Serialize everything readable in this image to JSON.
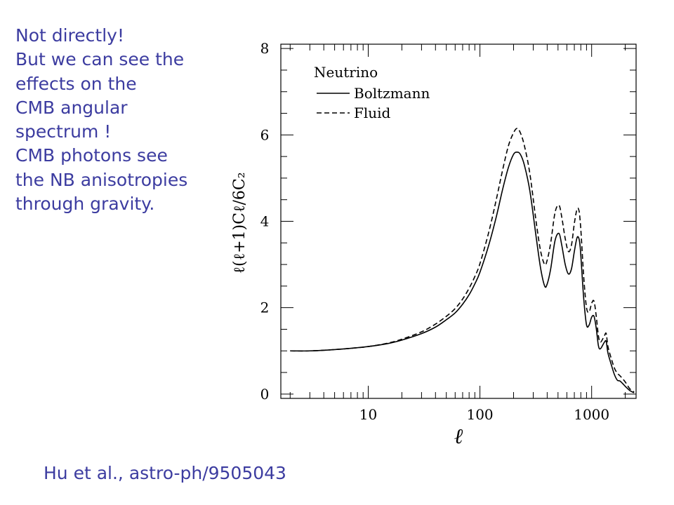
{
  "side_text": {
    "lines": [
      "Not directly!",
      "But we can see the",
      "effects on the",
      "CMB angular",
      "spectrum !",
      "CMB photons see",
      "the NB anisotropies",
      "through gravity."
    ]
  },
  "citation": "Hu et al., astro-ph/9505043",
  "chart_data": {
    "type": "line",
    "xlabel": "ℓ",
    "ylabel": "ℓ(ℓ+1)Cℓ/6C₂",
    "xscale": "log",
    "xlim": [
      1.65,
      2500
    ],
    "ylim": [
      -0.1,
      8.1
    ],
    "x_ticks": [
      {
        "value": 10,
        "label": "10"
      },
      {
        "value": 100,
        "label": "100"
      },
      {
        "value": 1000,
        "label": "1000"
      }
    ],
    "y_ticks": [
      {
        "value": 0,
        "label": "0"
      },
      {
        "value": 2,
        "label": "2"
      },
      {
        "value": 4,
        "label": "4"
      },
      {
        "value": 6,
        "label": "6"
      },
      {
        "value": 8,
        "label": "8"
      }
    ],
    "legend": {
      "title": "Neutrino",
      "position": "top-left",
      "entries": [
        "Boltzmann",
        "Fluid"
      ]
    },
    "series": [
      {
        "name": "Boltzmann",
        "style": "solid",
        "x": [
          2,
          3,
          5,
          7,
          10,
          15,
          20,
          30,
          40,
          50,
          60,
          70,
          80,
          90,
          100,
          120,
          140,
          160,
          180,
          200,
          215,
          230,
          250,
          280,
          320,
          350,
          380,
          400,
          430,
          470,
          510,
          540,
          580,
          620,
          660,
          700,
          740,
          770,
          790,
          810,
          850,
          900,
          950,
          1000,
          1050,
          1100,
          1150,
          1200,
          1300,
          1350,
          1400,
          1500,
          1600,
          1700,
          1800,
          2000,
          2200,
          2400
        ],
        "y": [
          1.0,
          1.0,
          1.03,
          1.06,
          1.1,
          1.17,
          1.25,
          1.4,
          1.55,
          1.72,
          1.88,
          2.08,
          2.3,
          2.55,
          2.82,
          3.45,
          4.1,
          4.75,
          5.25,
          5.55,
          5.6,
          5.55,
          5.3,
          4.7,
          3.6,
          2.9,
          2.5,
          2.55,
          2.9,
          3.55,
          3.72,
          3.45,
          3.0,
          2.78,
          2.9,
          3.3,
          3.62,
          3.6,
          3.4,
          3.0,
          2.2,
          1.6,
          1.6,
          1.78,
          1.8,
          1.52,
          1.12,
          1.05,
          1.2,
          1.22,
          0.95,
          0.68,
          0.45,
          0.32,
          0.3,
          0.18,
          0.08,
          0.03
        ]
      },
      {
        "name": "Fluid",
        "style": "dashed",
        "x": [
          2,
          3,
          5,
          7,
          10,
          15,
          20,
          30,
          40,
          50,
          60,
          70,
          80,
          90,
          100,
          120,
          140,
          160,
          180,
          200,
          215,
          230,
          250,
          280,
          320,
          350,
          380,
          400,
          430,
          470,
          510,
          540,
          580,
          620,
          660,
          700,
          740,
          770,
          790,
          810,
          850,
          900,
          950,
          1000,
          1050,
          1100,
          1150,
          1200,
          1300,
          1350,
          1400,
          1500,
          1600,
          1700,
          1800,
          2000,
          2200,
          2400
        ],
        "y": [
          1.0,
          1.0,
          1.03,
          1.06,
          1.1,
          1.18,
          1.27,
          1.44,
          1.62,
          1.8,
          1.98,
          2.2,
          2.45,
          2.72,
          3.02,
          3.75,
          4.5,
          5.2,
          5.75,
          6.05,
          6.15,
          6.05,
          5.75,
          5.1,
          3.95,
          3.3,
          3.0,
          3.1,
          3.5,
          4.2,
          4.37,
          4.1,
          3.6,
          3.3,
          3.45,
          3.95,
          4.28,
          4.25,
          4.0,
          3.6,
          2.7,
          2.0,
          1.9,
          2.1,
          2.15,
          1.8,
          1.35,
          1.2,
          1.35,
          1.4,
          1.1,
          0.82,
          0.6,
          0.48,
          0.42,
          0.28,
          0.12,
          0.05
        ]
      }
    ]
  }
}
